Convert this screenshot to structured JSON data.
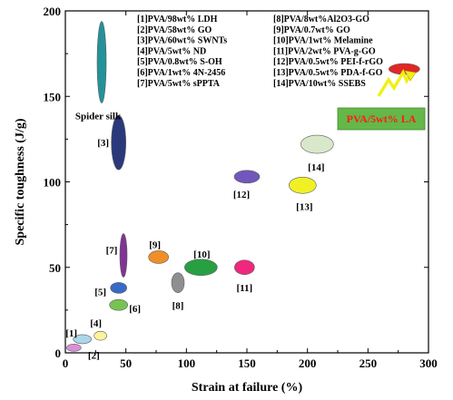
{
  "chart_data": {
    "type": "scatter",
    "xlabel": "Strain at failure (%)",
    "ylabel": "Specific toughness (J/g)",
    "xlim": [
      0,
      300
    ],
    "ylim": [
      0,
      200
    ],
    "xticks": [
      0,
      50,
      100,
      150,
      200,
      250,
      300
    ],
    "yticks": [
      0,
      50,
      100,
      150,
      200
    ],
    "grid": false,
    "legend_position": "top",
    "legend": [
      "[1]PVA/98wt% LDH",
      "[2]PVA/58wt% GO",
      "[3]PVA/60wt% SWNTs",
      "[4]PVA/5wt% ND",
      "[5]PVA/0.8wt% S-OH",
      "[6]PVA/1wt% 4N-2456",
      "[7]PVA/5wt% sPPTA",
      "[8]PVA/8wt%Al2O3-GO",
      "[9]PVA/0.7wt% GO",
      "[10]PVA/1wt% Melamine",
      "[11]PVA/2wt% PVA-g-GO",
      "[12]PVA/0.5wt% PEI-f-rGO",
      "[13]PVA/0.5wt% PDA-f-GO",
      "[14]PVA/10wt% SSEBS"
    ],
    "points": [
      {
        "label": "[1]",
        "x": 14,
        "y": 8,
        "color": "#a9d4e8"
      },
      {
        "label": "[2]",
        "x": 7,
        "y": 3,
        "color": "#d88bd6"
      },
      {
        "label": "[3]",
        "x": 44,
        "y": 123,
        "color": "#1f2f73"
      },
      {
        "label": "[4]",
        "x": 29,
        "y": 10,
        "color": "#fff29a"
      },
      {
        "label": "[5]",
        "x": 44,
        "y": 38,
        "color": "#2f62c4"
      },
      {
        "label": "[6]",
        "x": 44,
        "y": 28,
        "color": "#6fc04a"
      },
      {
        "label": "[7]",
        "x": 48,
        "y": 57,
        "color": "#7a2a8f"
      },
      {
        "label": "[8]",
        "x": 93,
        "y": 41,
        "color": "#8a8a8a"
      },
      {
        "label": "[9]",
        "x": 77,
        "y": 56,
        "color": "#f08a1a"
      },
      {
        "label": "[10]",
        "x": 112,
        "y": 50,
        "color": "#1e9a3a"
      },
      {
        "label": "[11]",
        "x": 148,
        "y": 50,
        "color": "#f01c78"
      },
      {
        "label": "[12]",
        "x": 150,
        "y": 103,
        "color": "#6a4fb8"
      },
      {
        "label": "[13]",
        "x": 196,
        "y": 98,
        "color": "#f0f01a"
      },
      {
        "label": "[14]",
        "x": 208,
        "y": 122,
        "color": "#d8e6c8"
      },
      {
        "label": "Spider silk",
        "x": 30,
        "y": 170,
        "color": "#1a8c94"
      },
      {
        "label": "PVA/5wt% LA",
        "x": 280,
        "y": 166,
        "color": "#e01b1b"
      }
    ],
    "callout": {
      "label": "PVA/5wt% LA",
      "box_color": "#64b848",
      "text_color": "#ff1a1a",
      "arrow_color": "#f0f01a"
    }
  }
}
